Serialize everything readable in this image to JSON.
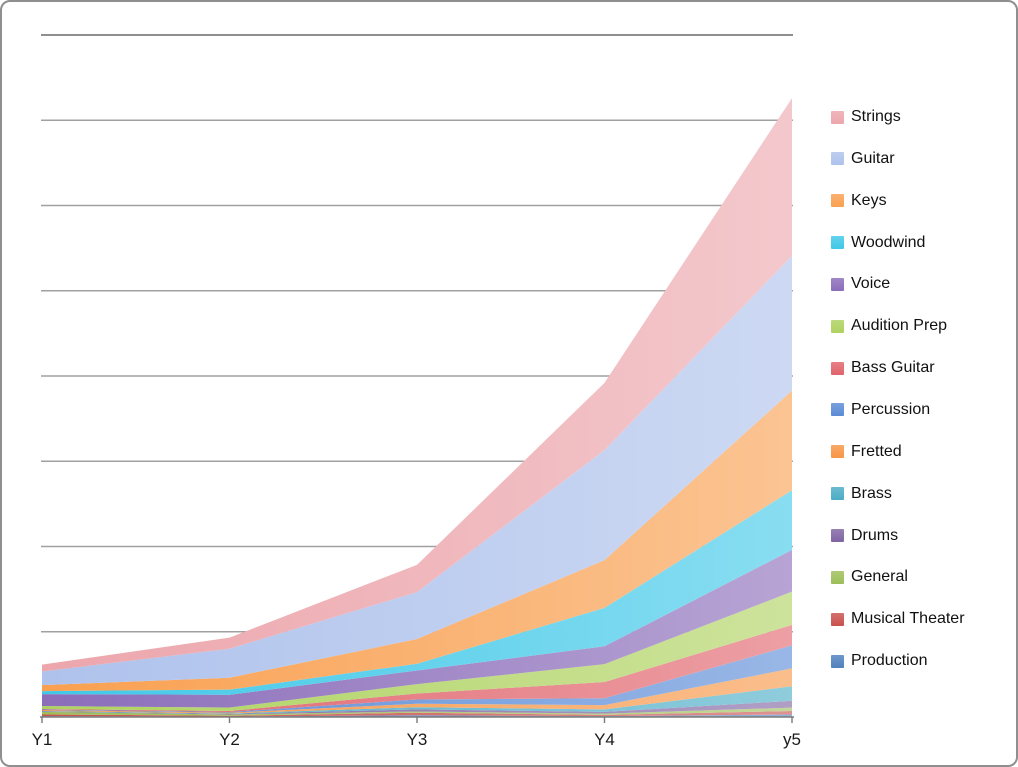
{
  "chart_data": {
    "type": "area",
    "stacked": true,
    "title": "",
    "xlabel": "",
    "ylabel": "",
    "categories": [
      "Y1",
      "Y2",
      "Y3",
      "Y4",
      "y5"
    ],
    "y_axis": {
      "labels_shown": false,
      "min": 0,
      "max": 8,
      "gridline_interval": 1,
      "gridlines_horizontal": true
    },
    "legend_position": "right",
    "legend_order": "reverse-of-stack",
    "grid_color": "#a0a0a0",
    "axis_color": "#7a7a7a",
    "label_color": "#1a1a1a",
    "series_bottom_to_top": [
      {
        "name": "Production",
        "color": "#4f81bd",
        "values": [
          0.01,
          0.005,
          0.02,
          0.01,
          0.03
        ]
      },
      {
        "name": "Musical Theater",
        "color": "#c9504e",
        "values": [
          0.02,
          0.01,
          0.03,
          0.015,
          0.04
        ]
      },
      {
        "name": "General",
        "color": "#9dbe59",
        "values": [
          0.03,
          0.015,
          0.015,
          0.015,
          0.04
        ]
      },
      {
        "name": "Drums",
        "color": "#8064a2",
        "values": [
          0.005,
          0.005,
          0.025,
          0.02,
          0.08
        ]
      },
      {
        "name": "Brass",
        "color": "#4bacc6",
        "values": [
          0.005,
          0.006,
          0.025,
          0.03,
          0.17
        ]
      },
      {
        "name": "Fretted",
        "color": "#f79646",
        "values": [
          0.012,
          0.01,
          0.04,
          0.05,
          0.21
        ]
      },
      {
        "name": "Percussion",
        "color": "#5b8bd6",
        "values": [
          0.006,
          0.008,
          0.05,
          0.08,
          0.27
        ]
      },
      {
        "name": "Bass Guitar",
        "color": "#e0646c",
        "values": [
          0.006,
          0.012,
          0.07,
          0.19,
          0.24
        ]
      },
      {
        "name": "Audition Prep",
        "color": "#aed25f",
        "values": [
          0.035,
          0.04,
          0.11,
          0.21,
          0.39
        ]
      },
      {
        "name": "Voice",
        "color": "#8b6dba",
        "values": [
          0.14,
          0.15,
          0.16,
          0.21,
          0.49
        ]
      },
      {
        "name": "Woodwind",
        "color": "#40c8e8",
        "values": [
          0.035,
          0.06,
          0.08,
          0.45,
          0.7
        ]
      },
      {
        "name": "Keys",
        "color": "#f9a050",
        "values": [
          0.07,
          0.14,
          0.29,
          0.56,
          1.17
        ]
      },
      {
        "name": "Guitar",
        "color": "#aec2ec",
        "values": [
          0.16,
          0.34,
          0.55,
          1.29,
          1.58
        ]
      },
      {
        "name": "Strings",
        "color": "#eca6ac",
        "values": [
          0.08,
          0.13,
          0.32,
          0.79,
          1.85
        ]
      }
    ]
  }
}
